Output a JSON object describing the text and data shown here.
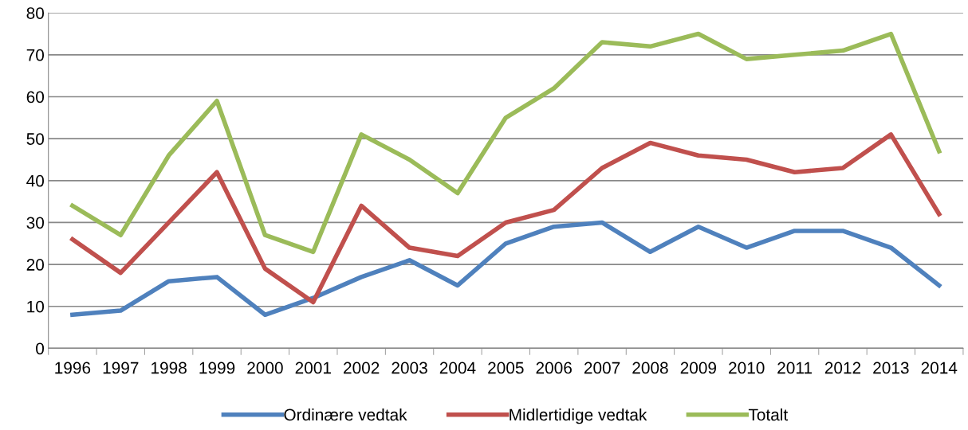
{
  "chart_data": {
    "type": "line",
    "categories": [
      "1996",
      "1997",
      "1998",
      "1999",
      "2000",
      "2001",
      "2002",
      "2003",
      "2004",
      "2005",
      "2006",
      "2007",
      "2008",
      "2009",
      "2010",
      "2011",
      "2012",
      "2013",
      "2014"
    ],
    "series": [
      {
        "name": "Ordinære vedtak",
        "color": "#4f81bd",
        "values": [
          8,
          9,
          16,
          17,
          8,
          12,
          17,
          21,
          15,
          25,
          29,
          30,
          23,
          29,
          24,
          28,
          28,
          24,
          15
        ]
      },
      {
        "name": "Midlertidige vedtak",
        "color": "#c0504d",
        "values": [
          26,
          18,
          30,
          42,
          19,
          11,
          34,
          24,
          22,
          30,
          33,
          43,
          49,
          46,
          45,
          42,
          43,
          51,
          32
        ]
      },
      {
        "name": "Totalt",
        "color": "#9bbb59",
        "values": [
          34,
          27,
          46,
          59,
          27,
          23,
          51,
          45,
          37,
          55,
          62,
          73,
          72,
          75,
          69,
          70,
          71,
          75,
          47
        ]
      }
    ],
    "ylim": [
      0,
      80
    ],
    "yticks": [
      0,
      10,
      20,
      30,
      40,
      50,
      60,
      70,
      80
    ],
    "grid": "y",
    "legend": "bottom",
    "marker": "none",
    "line_style": "solid"
  }
}
